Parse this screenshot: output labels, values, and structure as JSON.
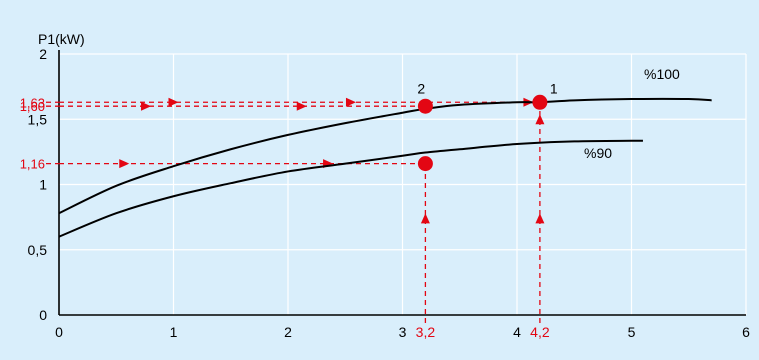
{
  "chart_data": {
    "type": "line",
    "ylabel": "P1(kW)",
    "xlabel": "",
    "xlim": [
      0,
      6
    ],
    "ylim": [
      0,
      2
    ],
    "grid": true,
    "x_ticks": [
      {
        "value": 0,
        "label": "0"
      },
      {
        "value": 1,
        "label": "1"
      },
      {
        "value": 2,
        "label": "2"
      },
      {
        "value": 3,
        "label": "3"
      },
      {
        "value": 4,
        "label": "4"
      },
      {
        "value": 5,
        "label": "5"
      },
      {
        "value": 6,
        "label": "6"
      }
    ],
    "y_ticks": [
      {
        "value": 0,
        "label": "0"
      },
      {
        "value": 0.5,
        "label": "0,5"
      },
      {
        "value": 1,
        "label": "1"
      },
      {
        "value": 1.5,
        "label": "1,5"
      },
      {
        "value": 2,
        "label": "2"
      }
    ],
    "series": [
      {
        "name": "%100",
        "x": [
          0,
          0.5,
          1,
          1.5,
          2,
          2.5,
          3,
          3.2,
          3.5,
          4,
          4.2,
          4.5,
          5,
          5.5,
          5.7
        ],
        "y": [
          0.78,
          0.99,
          1.14,
          1.27,
          1.38,
          1.47,
          1.55,
          1.58,
          1.61,
          1.63,
          1.63,
          1.645,
          1.655,
          1.655,
          1.645
        ]
      },
      {
        "name": "%90",
        "x": [
          0,
          0.5,
          1,
          1.5,
          2,
          2.5,
          3,
          3.2,
          3.5,
          4,
          4.5,
          5,
          5.1
        ],
        "y": [
          0.6,
          0.78,
          0.91,
          1.01,
          1.1,
          1.16,
          1.22,
          1.245,
          1.27,
          1.31,
          1.33,
          1.335,
          1.335
        ]
      }
    ],
    "points": [
      {
        "label": "1",
        "x": 4.2,
        "y": 1.63
      },
      {
        "label": "2",
        "x": 3.2,
        "y": 1.6
      },
      {
        "label": "",
        "x": 3.2,
        "y": 1.16
      }
    ],
    "annotations": {
      "red_y_labels": [
        {
          "value": 1.63,
          "label": "1,63"
        },
        {
          "value": 1.6,
          "label": "1,60"
        },
        {
          "value": 1.16,
          "label": "1,16"
        }
      ],
      "red_x_labels": [
        {
          "value": 3.2,
          "label": "3,2"
        },
        {
          "value": 4.2,
          "label": "4,2"
        }
      ]
    },
    "colors": {
      "background": "#d9eefb",
      "grid": "#ffffff",
      "curve": "#000000",
      "highlight": "#e30613"
    }
  }
}
